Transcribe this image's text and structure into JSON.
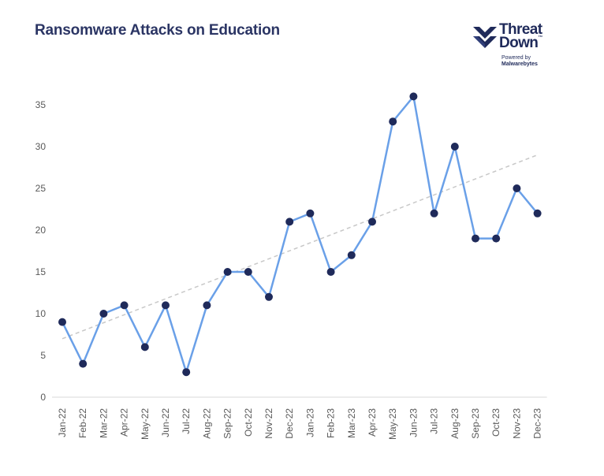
{
  "title": "Ransomware Attacks on Education",
  "logo": {
    "line1": "Threat",
    "line2": "Down",
    "trademark": "™",
    "powered": "Powered by",
    "brand": "Malwarebytes",
    "icon": "threatdown-chevron-icon"
  },
  "colors": {
    "title": "#2b3564",
    "line": "#6aa0e8",
    "marker": "#1f2a5a",
    "trend": "#c8c8c8",
    "axis_text": "#595959"
  },
  "chart_data": {
    "type": "line",
    "title": "Ransomware Attacks on Education",
    "xlabel": "",
    "ylabel": "",
    "ylim": [
      0,
      35
    ],
    "yticks": [
      0,
      5,
      10,
      15,
      20,
      25,
      30,
      35
    ],
    "grid": false,
    "legend": "none",
    "categories": [
      "Jan-22",
      "Feb-22",
      "Mar-22",
      "Apr-22",
      "May-22",
      "Jun-22",
      "Jul-22",
      "Aug-22",
      "Sep-22",
      "Oct-22",
      "Nov-22",
      "Dec-22",
      "Jan-23",
      "Feb-23",
      "Mar-23",
      "Apr-23",
      "May-23",
      "Jun-23",
      "Jul-23",
      "Aug-23",
      "Sep-23",
      "Oct-23",
      "Nov-23",
      "Dec-23"
    ],
    "series": [
      {
        "values": [
          9,
          4,
          10,
          11,
          6,
          11,
          3,
          11,
          15,
          15,
          12,
          21,
          22,
          15,
          17,
          21,
          33,
          36,
          22,
          30,
          19,
          19,
          25,
          22
        ]
      }
    ],
    "trendline": {
      "style": "dashed",
      "start": 7,
      "end": 29
    }
  }
}
